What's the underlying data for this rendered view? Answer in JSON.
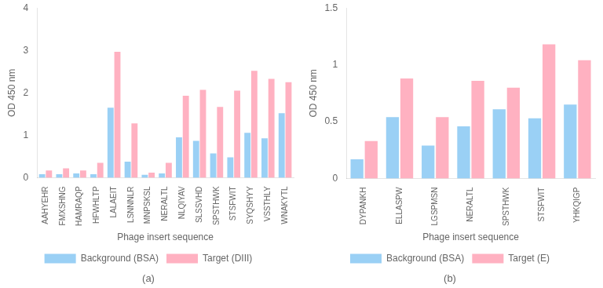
{
  "chart_data": [
    {
      "type": "bar",
      "categories": [
        "AAHYEHR",
        "FMXSHNG",
        "HAMRAQP",
        "HFWHLTP",
        "LALAEIT",
        "LSNNNLR",
        "MNPSKSL",
        "NERALTL",
        "NLQIYAV",
        "SLSSVHD",
        "SPSTHWK",
        "STSFWIT",
        "SYQSHYY",
        "VSSTHLY",
        "WNAKYTL"
      ],
      "series": [
        {
          "name": "Background (BSA)",
          "values": [
            0.08,
            0.08,
            0.1,
            0.08,
            1.65,
            0.38,
            0.07,
            0.1,
            0.95,
            0.87,
            0.57,
            0.48,
            1.06,
            0.93,
            1.52
          ]
        },
        {
          "name": "Target (DIII)",
          "values": [
            0.17,
            0.22,
            0.17,
            0.35,
            2.97,
            1.28,
            0.12,
            0.35,
            1.93,
            2.07,
            1.67,
            2.05,
            2.52,
            2.33,
            2.25
          ]
        }
      ],
      "xlabel": "Phage insert sequence",
      "ylabel": "OD 450 nm",
      "ylim": [
        0,
        4
      ],
      "yticks": [
        0,
        1,
        2,
        3,
        4
      ],
      "grid": false,
      "legend": "bottom",
      "annotations": [
        "(a)"
      ]
    },
    {
      "type": "bar",
      "categories": [
        "DYPANKH",
        "ELLASPW",
        "LGSPMSN",
        "NERALTL",
        "SPSTHWK",
        "STSFWIT",
        "YHKQIGP"
      ],
      "series": [
        {
          "name": "Background (BSA)",
          "values": [
            0.17,
            0.54,
            0.29,
            0.46,
            0.61,
            0.53,
            0.65
          ]
        },
        {
          "name": "Target (E)",
          "values": [
            0.33,
            0.88,
            0.54,
            0.86,
            0.8,
            1.18,
            1.04
          ]
        }
      ],
      "xlabel": "Phage insert sequence",
      "ylabel": "OD 450 nm",
      "ylim": [
        0,
        1.5
      ],
      "yticks": [
        0,
        0.5,
        1,
        1.5
      ],
      "grid": false,
      "legend": "bottom",
      "annotations": [
        "(b)"
      ]
    }
  ]
}
